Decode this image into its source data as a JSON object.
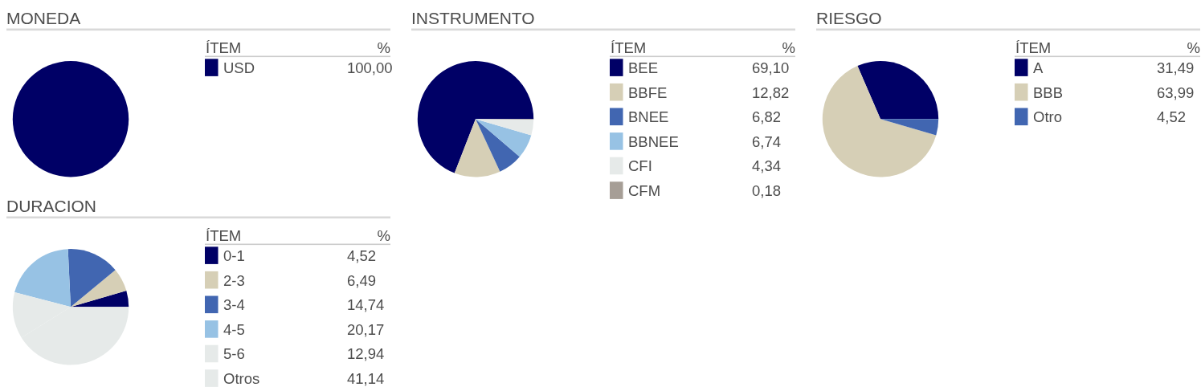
{
  "chart_data": [
    {
      "type": "pie",
      "title": "MONEDA",
      "legend_title": "ÍTEM",
      "annotations": [
        "%"
      ],
      "legend": "right",
      "categories": [
        "USD"
      ],
      "values": [
        100
      ],
      "value_labels": [
        "100,00"
      ],
      "colors": [
        "#000066"
      ]
    },
    {
      "type": "pie",
      "title": "INSTRUMENTO",
      "legend_title": "ÍTEM",
      "annotations": [
        "%"
      ],
      "legend": "right",
      "categories": [
        "BEE",
        "BBFE",
        "BNEE",
        "BBNEE",
        "CFI",
        "CFM"
      ],
      "values": [
        69.1,
        12.82,
        6.82,
        6.74,
        4.34,
        0.18
      ],
      "value_labels": [
        "69,10",
        "12,82",
        "6,82",
        "6,74",
        "4,34",
        "0,18"
      ],
      "colors": [
        "#000066",
        "#d6cfb6",
        "#4166b1",
        "#97c2e4",
        "#e6eae9",
        "#a69e96"
      ]
    },
    {
      "type": "pie",
      "title": "RIESGO",
      "legend_title": "ÍTEM",
      "annotations": [
        "%"
      ],
      "legend": "right",
      "categories": [
        "A",
        "BBB",
        "Otro"
      ],
      "values": [
        31.49,
        63.99,
        4.52
      ],
      "value_labels": [
        "31,49",
        "63,99",
        "4,52"
      ],
      "colors": [
        "#000066",
        "#d6cfb6",
        "#4166b1"
      ]
    },
    {
      "type": "pie",
      "title": "DURACION",
      "legend_title": "ÍTEM",
      "annotations": [
        "%"
      ],
      "legend": "right",
      "categories": [
        "0-1",
        "2-3",
        "3-4",
        "4-5",
        "5-6",
        "Otros"
      ],
      "values": [
        4.52,
        6.49,
        14.74,
        20.17,
        12.94,
        41.14
      ],
      "value_labels": [
        "4,52",
        "6,49",
        "14,74",
        "20,17",
        "12,94",
        "41,14"
      ],
      "colors": [
        "#000066",
        "#d6cfb6",
        "#4166b1",
        "#97c2e4",
        "#e6eae9",
        "#e6eae9"
      ]
    }
  ]
}
